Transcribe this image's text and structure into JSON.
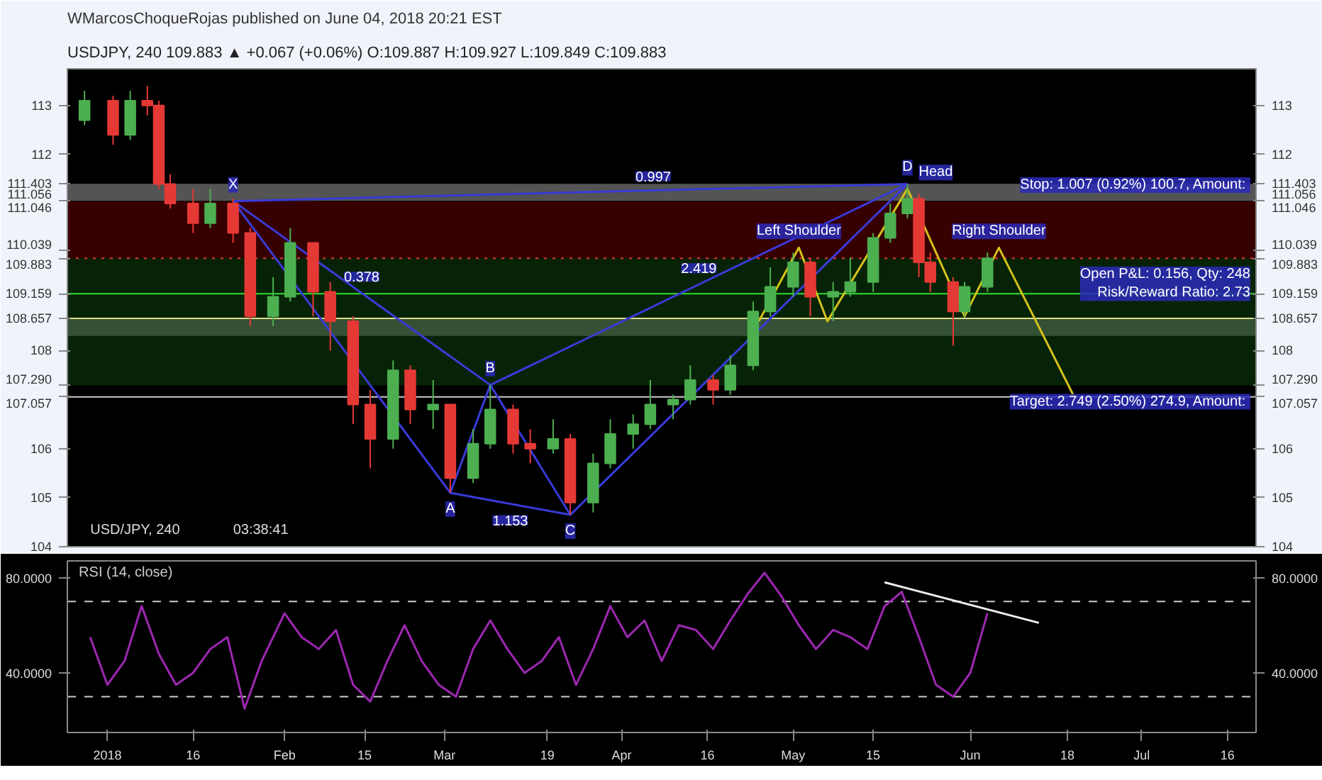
{
  "chart_data": [
    {
      "type": "candlestick",
      "title": "WMarcosChoqueRojas published on June 04, 2018 20:21 EST",
      "subtitle": "USDJPY, 240 109.883 ▲ +0.067 (+0.06%) O:109.887 H:109.927 L:109.849 C:109.883",
      "x": [
        "2017-12-28",
        "2018-01-02",
        "2018-01-05",
        "2018-01-08",
        "2018-01-10",
        "2018-01-12",
        "2018-01-16",
        "2018-01-19",
        "2018-01-23",
        "2018-01-26",
        "2018-01-30",
        "2018-02-02",
        "2018-02-06",
        "2018-02-09",
        "2018-02-13",
        "2018-02-16",
        "2018-02-20",
        "2018-02-23",
        "2018-02-27",
        "2018-03-02",
        "2018-03-06",
        "2018-03-09",
        "2018-03-13",
        "2018-03-16",
        "2018-03-20",
        "2018-03-23",
        "2018-03-27",
        "2018-03-30",
        "2018-04-03",
        "2018-04-06",
        "2018-04-10",
        "2018-04-13",
        "2018-04-17",
        "2018-04-20",
        "2018-04-24",
        "2018-04-27",
        "2018-05-01",
        "2018-05-04",
        "2018-05-08",
        "2018-05-11",
        "2018-05-15",
        "2018-05-18",
        "2018-05-21",
        "2018-05-23",
        "2018-05-25",
        "2018-05-29",
        "2018-05-31",
        "2018-06-04"
      ],
      "ohlc": [
        [
          112.7,
          113.3,
          112.6,
          113.1
        ],
        [
          113.1,
          113.2,
          112.2,
          112.4
        ],
        [
          112.4,
          113.3,
          112.3,
          113.1
        ],
        [
          113.1,
          113.4,
          112.8,
          113.0
        ],
        [
          113.0,
          113.1,
          111.3,
          111.4
        ],
        [
          111.4,
          111.6,
          110.9,
          111.0
        ],
        [
          111.0,
          111.3,
          110.4,
          110.6
        ],
        [
          110.6,
          111.3,
          110.5,
          111.0
        ],
        [
          111.0,
          111.1,
          110.2,
          110.4
        ],
        [
          110.4,
          110.5,
          108.5,
          108.7
        ],
        [
          108.7,
          109.5,
          108.5,
          109.1
        ],
        [
          109.1,
          110.5,
          109.0,
          110.2
        ],
        [
          110.2,
          110.2,
          108.7,
          109.2
        ],
        [
          109.2,
          109.4,
          108.0,
          108.6
        ],
        [
          108.6,
          108.7,
          106.5,
          106.9
        ],
        [
          106.9,
          107.2,
          105.6,
          106.2
        ],
        [
          106.2,
          107.8,
          106.0,
          107.6
        ],
        [
          107.6,
          107.7,
          106.5,
          106.8
        ],
        [
          106.8,
          107.4,
          106.4,
          106.9
        ],
        [
          106.9,
          106.9,
          105.1,
          105.4
        ],
        [
          105.4,
          106.4,
          105.3,
          106.1
        ],
        [
          106.1,
          107.3,
          106.0,
          106.8
        ],
        [
          106.8,
          106.9,
          105.9,
          106.1
        ],
        [
          106.1,
          106.4,
          105.7,
          106.0
        ],
        [
          106.0,
          106.6,
          105.9,
          106.2
        ],
        [
          106.2,
          106.3,
          104.65,
          104.9
        ],
        [
          104.9,
          105.9,
          104.7,
          105.7
        ],
        [
          105.7,
          106.6,
          105.6,
          106.3
        ],
        [
          106.3,
          106.7,
          106.0,
          106.5
        ],
        [
          106.5,
          107.4,
          106.4,
          106.9
        ],
        [
          106.9,
          107.1,
          106.6,
          107.0
        ],
        [
          107.0,
          107.7,
          106.9,
          107.4
        ],
        [
          107.4,
          107.5,
          106.9,
          107.2
        ],
        [
          107.2,
          107.9,
          107.1,
          107.7
        ],
        [
          107.7,
          109.0,
          107.6,
          108.8
        ],
        [
          108.8,
          109.7,
          108.7,
          109.3
        ],
        [
          109.3,
          110.0,
          109.1,
          109.8
        ],
        [
          109.8,
          109.9,
          108.7,
          109.1
        ],
        [
          109.1,
          109.4,
          108.6,
          109.2
        ],
        [
          109.2,
          109.9,
          109.1,
          109.4
        ],
        [
          109.4,
          110.4,
          109.2,
          110.3
        ],
        [
          110.3,
          111.0,
          110.2,
          110.8
        ],
        [
          110.8,
          111.4,
          110.7,
          111.1
        ],
        [
          111.1,
          111.2,
          109.5,
          109.8
        ],
        [
          109.8,
          110.0,
          109.2,
          109.4
        ],
        [
          109.4,
          109.5,
          108.1,
          108.8
        ],
        [
          108.8,
          109.4,
          108.7,
          109.3
        ],
        [
          109.3,
          110.0,
          109.2,
          109.883
        ]
      ],
      "colors": [
        "#4caf50",
        "#e53935",
        "#4caf50",
        "#e53935",
        "#e53935",
        "#e53935",
        "#e53935",
        "#4caf50",
        "#e53935",
        "#e53935",
        "#4caf50",
        "#4caf50",
        "#e53935",
        "#e53935",
        "#e53935",
        "#e53935",
        "#4caf50",
        "#e53935",
        "#4caf50",
        "#e53935",
        "#4caf50",
        "#4caf50",
        "#e53935",
        "#e53935",
        "#4caf50",
        "#e53935",
        "#4caf50",
        "#4caf50",
        "#4caf50",
        "#4caf50",
        "#4caf50",
        "#4caf50",
        "#e53935",
        "#4caf50",
        "#4caf50",
        "#4caf50",
        "#4caf50",
        "#e53935",
        "#4caf50",
        "#4caf50",
        "#4caf50",
        "#4caf50",
        "#4caf50",
        "#e53935",
        "#e53935",
        "#e53935",
        "#4caf50",
        "#4caf50"
      ],
      "series": [
        {
          "type": "line",
          "color": "#3a3ad8",
          "x": [
            "2018-01-23",
            "2018-03-02",
            "2018-03-09",
            "2018-03-23",
            "2018-05-21"
          ],
          "values": [
            111.05,
            105.1,
            107.3,
            104.65,
            111.4
          ]
        },
        {
          "type": "line",
          "color": "#3a3ad8",
          "x": [
            "2018-01-23",
            "2018-05-21"
          ],
          "values": [
            111.05,
            111.4
          ]
        },
        {
          "type": "line",
          "color": "#3a3ad8",
          "x": [
            "2018-01-23",
            "2018-03-09"
          ],
          "values": [
            111.05,
            107.3
          ]
        },
        {
          "type": "line",
          "color": "#3a3ad8",
          "x": [
            "2018-03-02",
            "2018-03-23"
          ],
          "values": [
            105.1,
            104.65
          ]
        },
        {
          "type": "line",
          "color": "#3a3ad8",
          "x": [
            "2018-03-09",
            "2018-05-21"
          ],
          "values": [
            107.3,
            111.4
          ]
        },
        {
          "type": "line",
          "color": "#d4c21c",
          "x": [
            "2018-04-25",
            "2018-05-02",
            "2018-05-07",
            "2018-05-21",
            "2018-05-31",
            "2018-06-06",
            "2018-06-19"
          ],
          "values": [
            108.6,
            110.1,
            108.6,
            111.3,
            108.7,
            110.1,
            107.1
          ]
        }
      ],
      "xlim": [
        "2017-12-25",
        "2018-07-21"
      ],
      "tick_labels": "y",
      "ylim": [
        104,
        113.75
      ],
      "yticks": [
        104,
        105,
        106,
        {
          "value": 107.057,
          "label": "107.057"
        },
        {
          "value": 107.29,
          "label": "107.290"
        },
        108,
        {
          "value": 108.657,
          "label": "108.657"
        },
        {
          "value": 109.159,
          "label": "109.159"
        },
        {
          "value": 109.883,
          "label": "109.883"
        },
        {
          "value": 110.039,
          "label": "110.039"
        },
        {
          "value": 111.046,
          "label": "111.046"
        },
        {
          "value": 111.056,
          "label": "111.056"
        },
        {
          "value": 111.403,
          "label": "111.403"
        },
        112,
        113
      ],
      "y2lim": [
        104,
        113.75
      ],
      "y2ticks": [
        104,
        105,
        106,
        {
          "value": 107.057,
          "label": "107.057"
        },
        {
          "value": 107.29,
          "label": "107.290"
        },
        108,
        {
          "value": 108.657,
          "label": "108.657"
        },
        {
          "value": 109.159,
          "label": "109.159"
        },
        {
          "value": 109.883,
          "label": "109.883"
        },
        {
          "value": 110.039,
          "label": "110.039"
        },
        {
          "value": 111.046,
          "label": "111.046"
        },
        {
          "value": 111.056,
          "label": "111.056"
        },
        {
          "value": 111.403,
          "label": "111.403"
        },
        112,
        113
      ],
      "ref_lines": [
        {
          "axis": "y",
          "value": 107.057,
          "color": "#cccccc"
        },
        {
          "axis": "y",
          "value": 109.883,
          "color": "#e53935",
          "line_style": "dotted"
        },
        {
          "axis": "y",
          "value": 109.159,
          "color": "#33dd33"
        },
        {
          "axis": "y",
          "value": 108.657,
          "color": "#dddd88"
        }
      ],
      "bands": [
        {
          "axis": "y",
          "from": 111.056,
          "to": 111.403,
          "color": "#bbbbbb"
        },
        {
          "axis": "y",
          "from": 108.3,
          "to": 108.657,
          "color": "#bbbbbb"
        },
        {
          "axis": "y",
          "from": 109.883,
          "to": 111.046,
          "color": "#7a0000"
        },
        {
          "axis": "y",
          "from": 107.29,
          "to": 109.883,
          "color": "#0f4d0f"
        }
      ],
      "annotations": [
        "USD/JPY, 240",
        "03:38:41",
        {
          "text": "X",
          "x": "2018-01-23",
          "y": 111.05
        },
        {
          "text": "A",
          "x": "2018-03-02",
          "y": 105.1
        },
        {
          "text": "B",
          "x": "2018-03-09",
          "y": 107.3
        },
        {
          "text": "C",
          "x": "2018-03-23",
          "y": 104.65
        },
        {
          "text": "D",
          "x": "2018-05-21",
          "y": 111.4
        },
        {
          "text": "0.997",
          "x": "2018-04-06T12:00",
          "y": 111.225
        },
        {
          "text": "0.378",
          "x": "2018-02-14T12:00",
          "y": 109.175
        },
        {
          "text": "1.153",
          "x": "2018-03-12T12:00",
          "y": 104.875
        },
        {
          "text": "2.419",
          "x": "2018-04-14T12:00",
          "y": 109.35
        },
        {
          "text": "Left Shoulder",
          "x": "2018-05-02",
          "y": 110.1
        },
        {
          "text": "Head",
          "x": "2018-05-21",
          "y": 111.3
        },
        {
          "text": "Right Shoulder",
          "x": "2018-06-06",
          "y": 110.1
        },
        {
          "text": "Stop: 1.007 (0.92%) 100.7, Amount: ",
          "x": "2018-07-20",
          "y": 111.046
        },
        {
          "text": "Open P&L: 0.156, Qty: 248\nRisk/Reward Ratio: 2.73",
          "x": "2018-07-20",
          "y": 109.883
        },
        {
          "text": "Target: 2.749 (2.50%) 274.9, Amount: ",
          "x": "2018-07-20",
          "y": 107.29
        }
      ]
    },
    {
      "type": "line",
      "title": "RSI (14, close)",
      "color": "#9c27b0",
      "x": [
        "2017-12-29",
        "2018-01-01",
        "2018-01-04",
        "2018-01-07",
        "2018-01-10",
        "2018-01-13",
        "2018-01-16",
        "2018-01-19",
        "2018-01-22",
        "2018-01-25",
        "2018-01-28",
        "2018-02-01",
        "2018-02-04",
        "2018-02-07",
        "2018-02-10",
        "2018-02-13",
        "2018-02-16",
        "2018-02-19",
        "2018-02-22",
        "2018-02-25",
        "2018-02-28",
        "2018-03-03",
        "2018-03-06",
        "2018-03-09",
        "2018-03-12",
        "2018-03-15",
        "2018-03-18",
        "2018-03-21",
        "2018-03-24",
        "2018-03-27",
        "2018-03-30",
        "2018-04-02",
        "2018-04-05",
        "2018-04-08",
        "2018-04-11",
        "2018-04-14",
        "2018-04-17",
        "2018-04-20",
        "2018-04-23",
        "2018-04-26",
        "2018-04-29",
        "2018-05-02",
        "2018-05-05",
        "2018-05-08",
        "2018-05-11",
        "2018-05-14",
        "2018-05-17",
        "2018-05-20",
        "2018-05-23",
        "2018-05-26",
        "2018-05-29",
        "2018-06-01",
        "2018-06-04"
      ],
      "values": [
        55,
        35,
        45,
        68,
        48,
        35,
        40,
        50,
        55,
        25,
        45,
        65,
        55,
        50,
        58,
        35,
        28,
        45,
        60,
        45,
        35,
        30,
        50,
        62,
        50,
        40,
        45,
        55,
        35,
        50,
        68,
        55,
        62,
        45,
        60,
        58,
        50,
        62,
        73,
        82,
        72,
        60,
        50,
        58,
        55,
        50,
        68,
        74,
        55,
        35,
        30,
        40,
        65
      ],
      "series": [
        {
          "type": "line",
          "color": "#eeeeee",
          "x": [
            "2018-05-17",
            "2018-06-13"
          ],
          "values": [
            78,
            61
          ]
        }
      ],
      "ref_lines": [
        {
          "axis": "y",
          "value": 70,
          "color": "#cccccc",
          "line_style": "dashed"
        },
        {
          "axis": "y",
          "value": 30,
          "color": "#cccccc",
          "line_style": "dashed"
        }
      ],
      "xlim": [
        "2017-12-25",
        "2018-07-21"
      ],
      "ylim": [
        15,
        87
      ],
      "yticks": [
        {
          "value": 40,
          "label": "40.0000"
        },
        {
          "value": 80,
          "label": "80.0000"
        }
      ],
      "y2lim": [
        15,
        87
      ],
      "y2ticks": [
        {
          "value": 40,
          "label": "40.0000"
        },
        {
          "value": 80,
          "label": "80.0000"
        }
      ],
      "xticks": [
        {
          "value": "2018-01-01",
          "label": "2018"
        },
        {
          "value": "2018-01-16",
          "label": "16"
        },
        {
          "value": "2018-02-01",
          "label": "Feb"
        },
        {
          "value": "2018-02-15",
          "label": "15"
        },
        {
          "value": "2018-03-01",
          "label": "Mar"
        },
        {
          "value": "2018-03-19",
          "label": "19"
        },
        {
          "value": "2018-04-01",
          "label": "Apr"
        },
        {
          "value": "2018-04-16",
          "label": "16"
        },
        {
          "value": "2018-05-01",
          "label": "May"
        },
        {
          "value": "2018-05-15",
          "label": "15"
        },
        {
          "value": "2018-06-01",
          "label": "Jun"
        },
        {
          "value": "2018-06-18",
          "label": "18"
        },
        {
          "value": "2018-07-01",
          "label": "Jul"
        },
        {
          "value": "2018-07-16",
          "label": "16"
        }
      ]
    }
  ]
}
